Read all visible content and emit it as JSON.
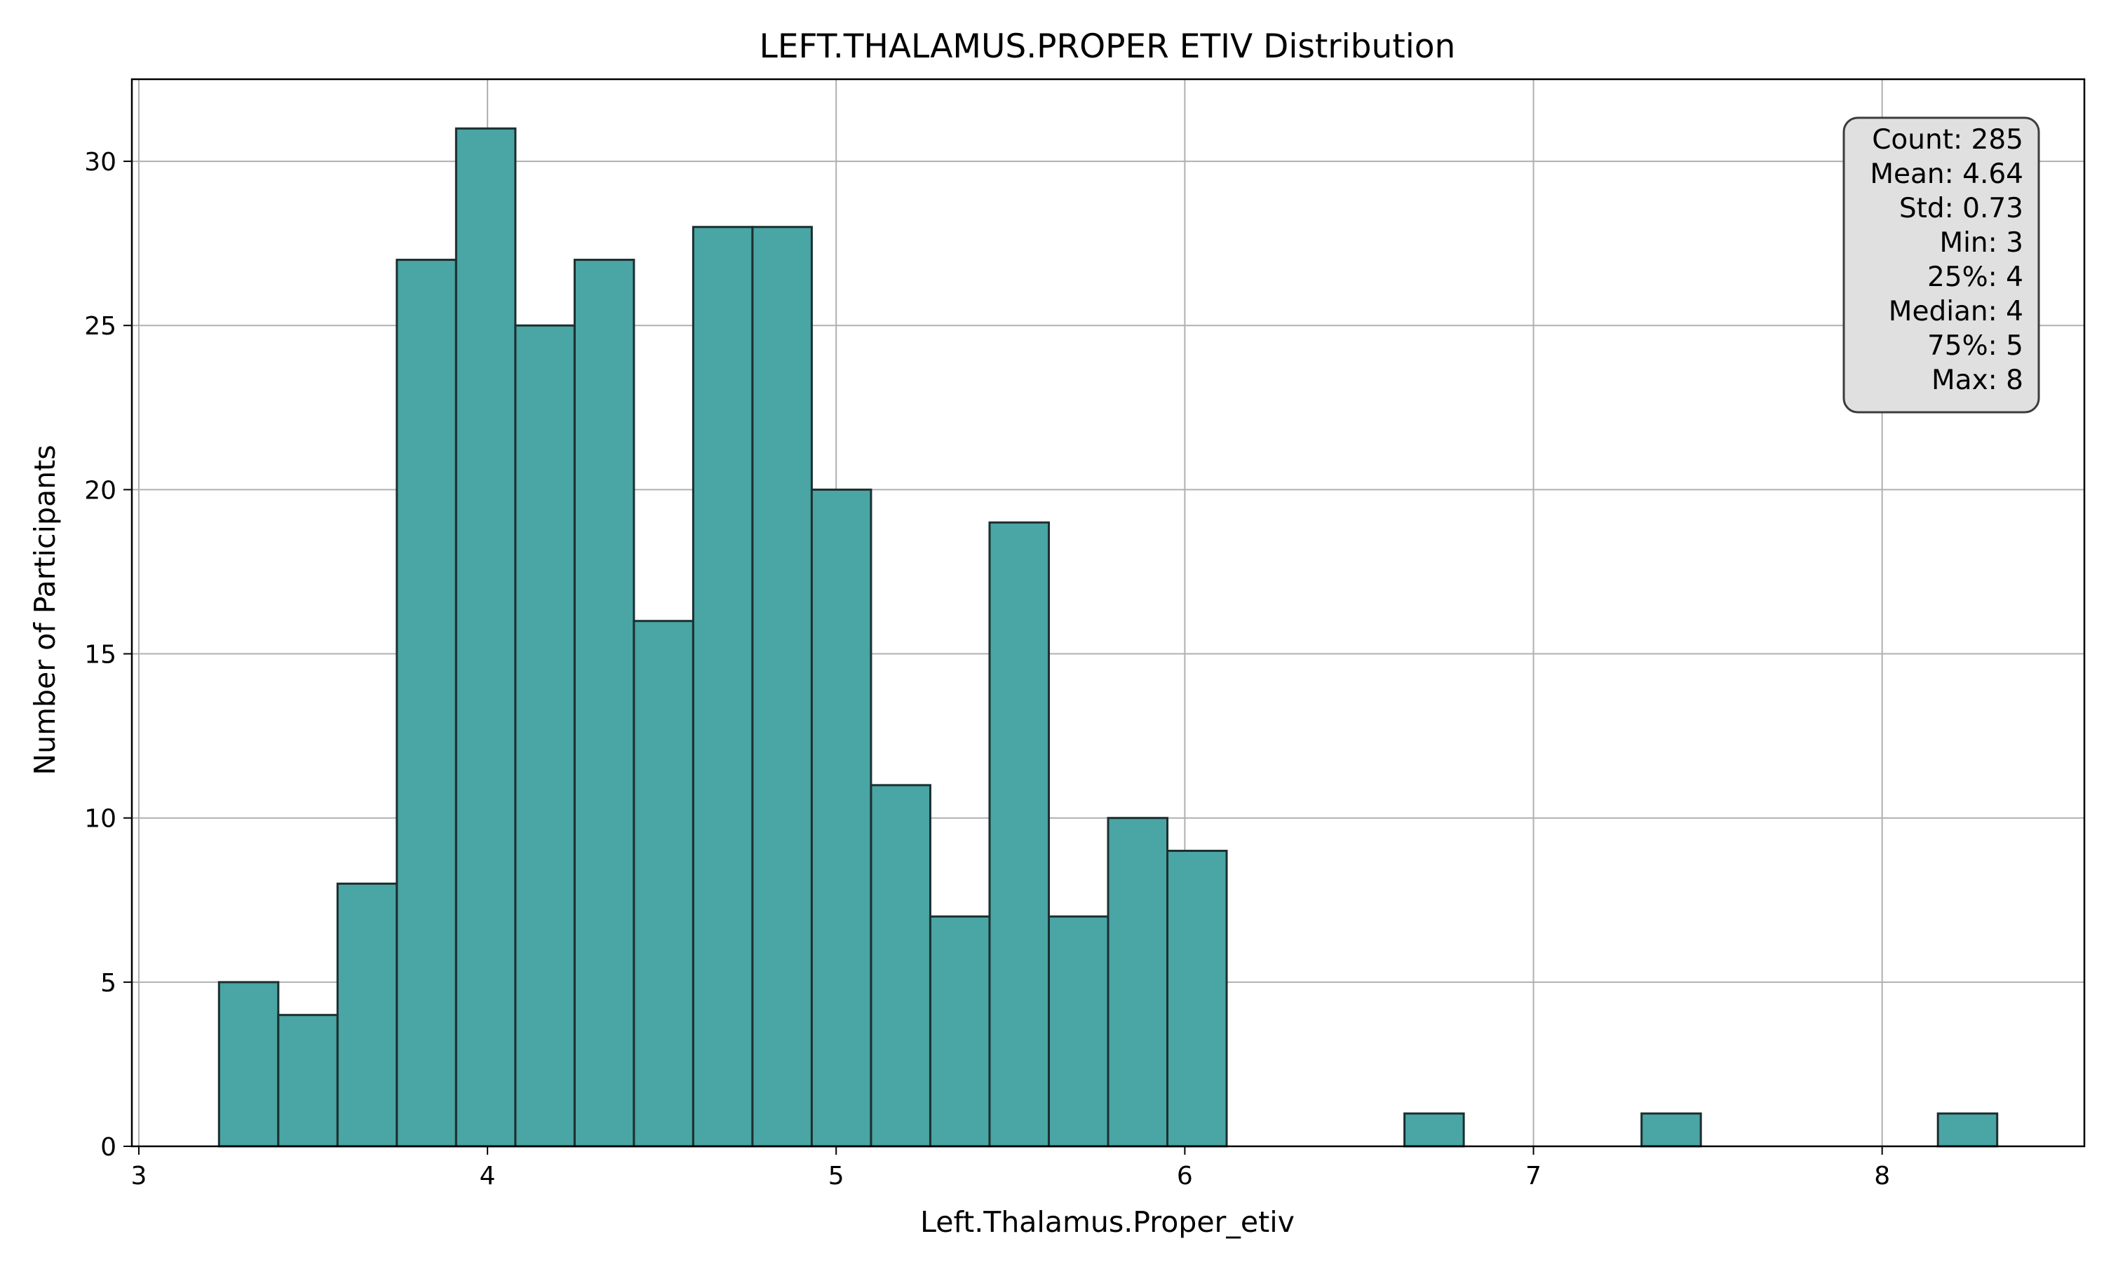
{
  "chart_data": {
    "type": "bar",
    "title": "LEFT.THALAMUS.PROPER ETIV Distribution",
    "xlabel": "Left.Thalamus.Proper_etiv",
    "ylabel": "Number of Participants",
    "xlim": [
      2.98,
      8.58
    ],
    "ylim": [
      0,
      32.5
    ],
    "xticks": [
      3,
      4,
      5,
      6,
      7,
      8
    ],
    "yticks": [
      0,
      5,
      10,
      15,
      20,
      25,
      30
    ],
    "grid": true,
    "bar_color": "#4aa5a5",
    "edge_color": "#1c2f2f",
    "bins": [
      {
        "x0": 3.23,
        "x1": 3.4,
        "count": 5
      },
      {
        "x0": 3.4,
        "x1": 3.57,
        "count": 4
      },
      {
        "x0": 3.57,
        "x1": 3.74,
        "count": 8
      },
      {
        "x0": 3.74,
        "x1": 3.91,
        "count": 27
      },
      {
        "x0": 3.91,
        "x1": 4.08,
        "count": 31
      },
      {
        "x0": 4.08,
        "x1": 4.25,
        "count": 25
      },
      {
        "x0": 4.25,
        "x1": 4.42,
        "count": 27
      },
      {
        "x0": 4.42,
        "x1": 4.59,
        "count": 16
      },
      {
        "x0": 4.59,
        "x1": 4.76,
        "count": 28
      },
      {
        "x0": 4.76,
        "x1": 4.93,
        "count": 28
      },
      {
        "x0": 4.93,
        "x1": 5.1,
        "count": 20
      },
      {
        "x0": 5.1,
        "x1": 5.27,
        "count": 11
      },
      {
        "x0": 5.27,
        "x1": 5.44,
        "count": 7
      },
      {
        "x0": 5.44,
        "x1": 5.61,
        "count": 19
      },
      {
        "x0": 5.61,
        "x1": 5.78,
        "count": 7
      },
      {
        "x0": 5.78,
        "x1": 5.95,
        "count": 10
      },
      {
        "x0": 5.95,
        "x1": 6.12,
        "count": 9
      },
      {
        "x0": 6.12,
        "x1": 6.29,
        "count": 0
      },
      {
        "x0": 6.29,
        "x1": 6.46,
        "count": 0
      },
      {
        "x0": 6.46,
        "x1": 6.63,
        "count": 0
      },
      {
        "x0": 6.63,
        "x1": 6.8,
        "count": 1
      },
      {
        "x0": 6.8,
        "x1": 6.97,
        "count": 0
      },
      {
        "x0": 6.97,
        "x1": 7.14,
        "count": 0
      },
      {
        "x0": 7.14,
        "x1": 7.31,
        "count": 0
      },
      {
        "x0": 7.31,
        "x1": 7.48,
        "count": 1
      },
      {
        "x0": 7.48,
        "x1": 7.65,
        "count": 0
      },
      {
        "x0": 7.65,
        "x1": 7.82,
        "count": 0
      },
      {
        "x0": 7.82,
        "x1": 7.99,
        "count": 0
      },
      {
        "x0": 7.99,
        "x1": 8.16,
        "count": 0
      },
      {
        "x0": 8.16,
        "x1": 8.33,
        "count": 1
      }
    ],
    "stats_box": {
      "position": "top-right",
      "lines": [
        "Count: 285",
        "Mean: 4.64",
        "Std: 0.73",
        "Min: 3",
        "25%: 4",
        "Median: 4",
        "75%: 5",
        "Max: 8"
      ]
    }
  }
}
